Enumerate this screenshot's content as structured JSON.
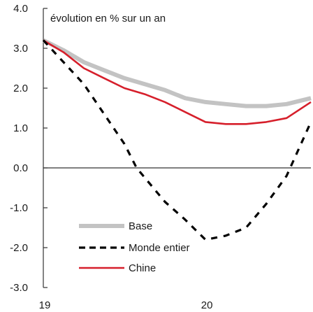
{
  "chart_data": {
    "type": "line",
    "annotation": "évolution en % sur un an",
    "ylim": [
      -3.0,
      4.0
    ],
    "y_ticks": [
      "4.0",
      "3.0",
      "2.0",
      "1.0",
      "0.0",
      "-1.0",
      "-2.0",
      "-3.0"
    ],
    "x_ticks": [
      {
        "label": "19",
        "x": 0
      },
      {
        "label": "20",
        "x": 4
      }
    ],
    "xlim": [
      0,
      6.6
    ],
    "legend_position": "bottom-center",
    "series": [
      {
        "name": "Base",
        "color": "#c3c3c3",
        "style": "solid",
        "x": [
          0,
          0.5,
          1,
          1.5,
          2,
          2.5,
          3,
          3.5,
          4,
          4.5,
          5,
          5.5,
          6,
          6.6
        ],
        "y": [
          3.2,
          2.95,
          2.65,
          2.45,
          2.25,
          2.1,
          1.95,
          1.75,
          1.65,
          1.6,
          1.55,
          1.55,
          1.6,
          1.75
        ]
      },
      {
        "name": "Monde entier",
        "color": "#000000",
        "style": "dashed",
        "x": [
          0,
          1,
          2,
          2.3,
          3,
          3.5,
          4,
          4.5,
          5,
          5.5,
          6,
          6.6
        ],
        "y": [
          3.2,
          2.1,
          0.6,
          0.0,
          -0.85,
          -1.3,
          -1.8,
          -1.7,
          -1.5,
          -0.9,
          -0.2,
          1.15
        ]
      },
      {
        "name": "Chine",
        "color": "#d61f2b",
        "style": "solid",
        "x": [
          0,
          0.5,
          1,
          1.5,
          2,
          2.5,
          3,
          3.5,
          4,
          4.5,
          5,
          5.5,
          6,
          6.6
        ],
        "y": [
          3.2,
          2.9,
          2.5,
          2.25,
          2.0,
          1.85,
          1.65,
          1.4,
          1.15,
          1.1,
          1.1,
          1.15,
          1.25,
          1.65
        ]
      }
    ]
  }
}
